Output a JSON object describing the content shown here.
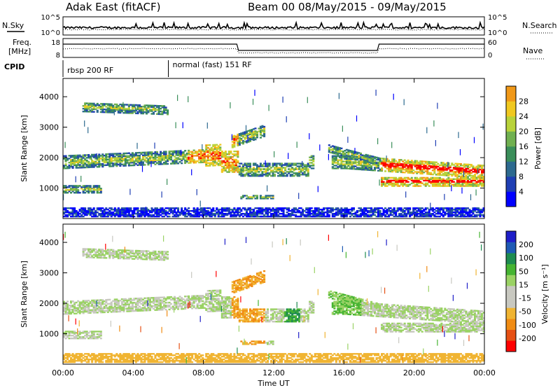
{
  "header": {
    "station": "Adak East (fitACF)",
    "beam_dates": "Beam 00  08/May/2015 - 09/May/2015"
  },
  "top_panels": {
    "nsky_label": "N.Sky",
    "nsky_ticks": [
      "10^5",
      "10^0"
    ],
    "nsearch_label": "N.Search",
    "nsearch_ticks": [
      "10^5",
      "10^0"
    ],
    "freq_label_1": "Freq.",
    "freq_label_2": "[MHz]",
    "freq_ticks": [
      "18",
      "8"
    ],
    "nave_label": "Nave",
    "nave_ticks": [
      "60",
      "0"
    ],
    "cpid_label": "CPID",
    "cpid_segments": [
      {
        "label": "rbsp 200 RF",
        "start_hour": 0,
        "end_hour": 6
      },
      {
        "label": "normal (fast) 151 RF",
        "start_hour": 6,
        "end_hour": 24
      }
    ]
  },
  "colors": {
    "power": [
      "#0000ff",
      "#1f3fb4",
      "#2d6a8f",
      "#3a8e5a",
      "#70b050",
      "#b8d23a",
      "#f0c820",
      "#f09818",
      "#f06010",
      "#ff0000"
    ],
    "velocity": [
      "#1e1ec8",
      "#1e5ab4",
      "#1e8c50",
      "#46b432",
      "#9ad264",
      "#c8c8c0",
      "#c8c8c0",
      "#f0b432",
      "#f08c14",
      "#e65014",
      "#ff0000"
    ]
  },
  "chart_data": [
    {
      "type": "heatmap",
      "name_key": "power",
      "ylabel": "Slant Range [km]",
      "ylim": [
        0,
        4600
      ],
      "xlim": [
        0,
        24
      ],
      "yticks": [
        1000,
        2000,
        3000,
        4000
      ],
      "colorbar_label": "Power [dB]",
      "colorbar_ticks": [
        4,
        8,
        12,
        16,
        20,
        24,
        28
      ]
    },
    {
      "type": "heatmap",
      "name_key": "velocity",
      "ylabel": "Slant Range [km]",
      "ylim": [
        0,
        4600
      ],
      "xlim": [
        0,
        24
      ],
      "yticks": [
        1000,
        2000,
        3000,
        4000
      ],
      "colorbar_label": "Velocity [m s⁻¹]",
      "colorbar_ticks": [
        200,
        100,
        50,
        15,
        -15,
        -50,
        -100,
        -200
      ]
    }
  ],
  "x_axis": {
    "ticks": [
      "00:00",
      "04:00",
      "08:00",
      "12:00",
      "16:00",
      "20:00",
      "00:00"
    ],
    "label": "Time UT"
  }
}
